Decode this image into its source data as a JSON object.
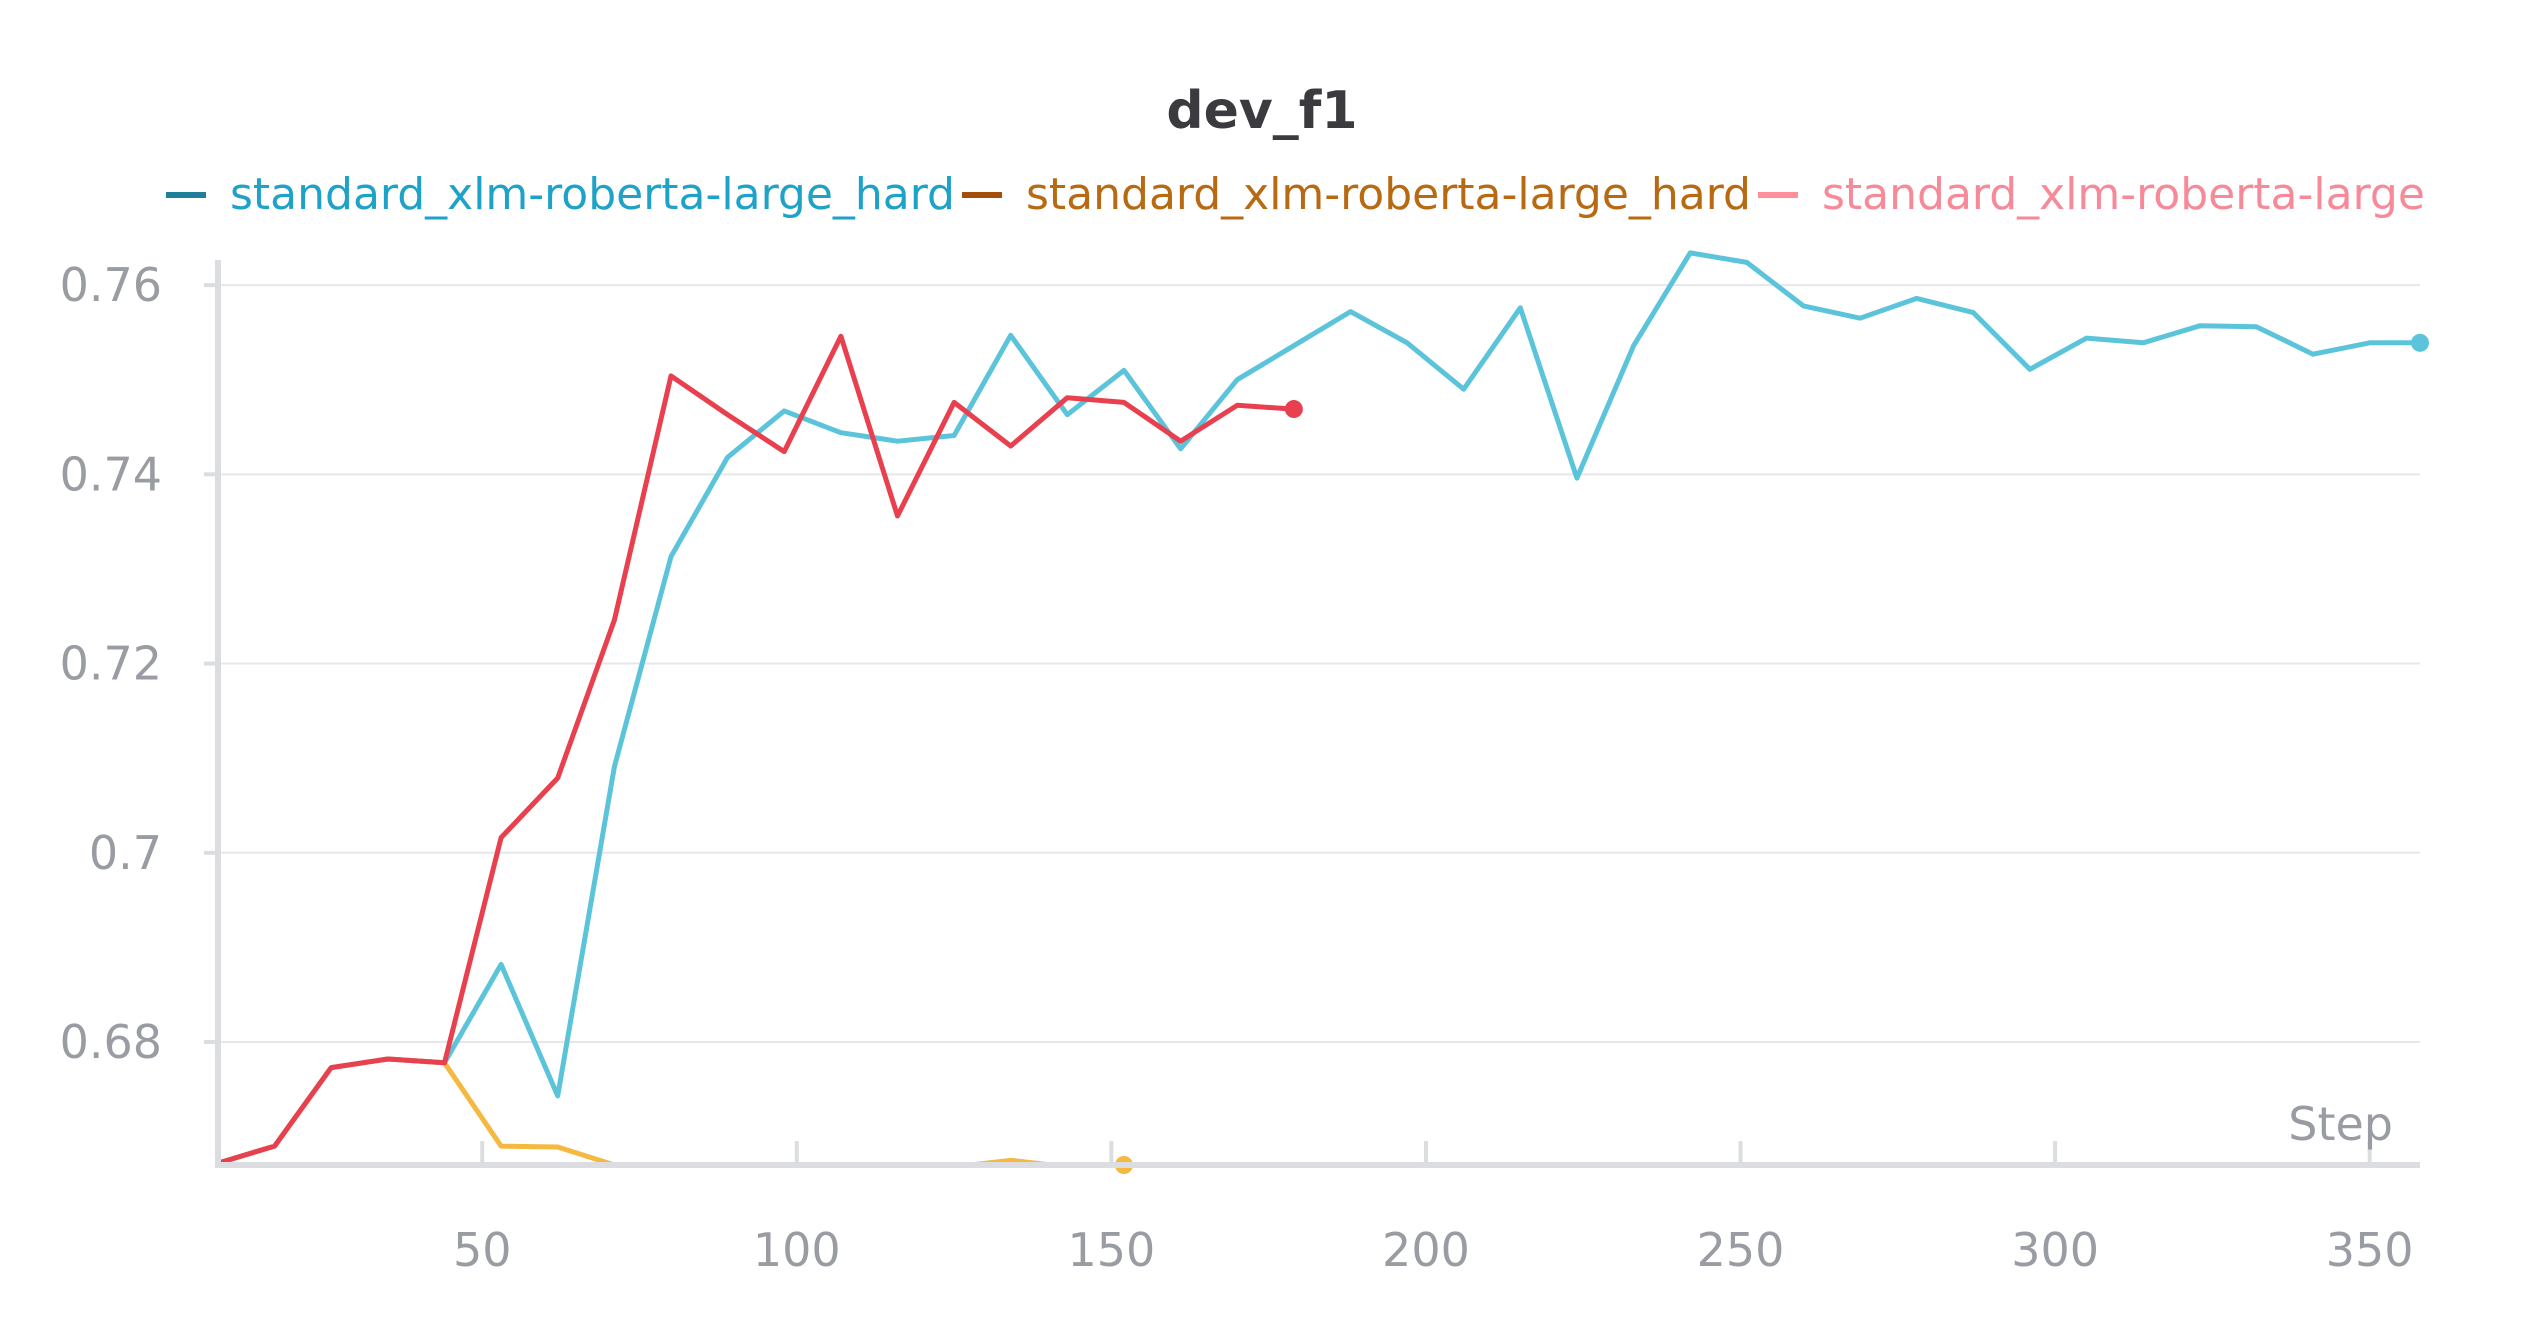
{
  "chart_data": {
    "type": "line",
    "title": "dev_f1",
    "xlabel": "Step",
    "ylabel": "",
    "xlim": [
      8,
      358
    ],
    "ylim": [
      0.667,
      0.7635
    ],
    "x_ticks": [
      50,
      100,
      150,
      200,
      250,
      300,
      350
    ],
    "y_ticks": [
      0.68,
      0.7,
      0.72,
      0.74,
      0.76
    ],
    "y_tick_labels": [
      "0.68",
      "0.7",
      "0.72",
      "0.74",
      "0.76"
    ],
    "grid": true,
    "legend_position": "top",
    "legend": [
      {
        "label": "standard_xlm-roberta-large_hard",
        "swatch_color": "#1f7f99",
        "text_color": "#1ea2c8"
      },
      {
        "label": "standard_xlm-roberta-large_hard",
        "swatch_color": "#a34f0a",
        "text_color": "#b86a12"
      },
      {
        "label": "standard_xlm-roberta-large",
        "swatch_color": "#ff8f9c",
        "text_color": "#f78a99"
      }
    ],
    "series": [
      {
        "color": "#5cc4da",
        "end_marker": true,
        "x": [
          8,
          17,
          26,
          35,
          44,
          53,
          62,
          71,
          80,
          89,
          98,
          107,
          116,
          125,
          134,
          143,
          152,
          161,
          170,
          179,
          188,
          197,
          206,
          215,
          224,
          233,
          242,
          251,
          260,
          269,
          278,
          287,
          296,
          305,
          314,
          323,
          332,
          341,
          350,
          358
        ],
        "values": [
          0.6672,
          0.669,
          0.6773,
          0.6782,
          0.6778,
          0.6882,
          0.6743,
          0.7091,
          0.7313,
          0.7418,
          0.7467,
          0.7444,
          0.7435,
          0.7441,
          0.7547,
          0.7463,
          0.751,
          0.7427,
          0.75,
          0.7536,
          0.7572,
          0.7539,
          0.749,
          0.7576,
          0.7396,
          0.7536,
          0.7634,
          0.7624,
          0.7578,
          0.7565,
          0.7586,
          0.7571,
          0.7511,
          0.7544,
          0.7539,
          0.7557,
          0.7556,
          0.7527,
          0.7539,
          0.7539
        ]
      },
      {
        "color": "#f5b841",
        "end_marker": true,
        "x": [
          8,
          17,
          26,
          35,
          44,
          53,
          62,
          71,
          80,
          89,
          98,
          107,
          116,
          125,
          134,
          143,
          152
        ],
        "values": [
          0.6672,
          0.669,
          0.6773,
          0.6782,
          0.6778,
          0.669,
          0.6689,
          0.667,
          0.666,
          0.6655,
          0.6655,
          0.6655,
          0.6655,
          0.6668,
          0.6675,
          0.6668,
          0.667
        ]
      },
      {
        "color": "#e8404e",
        "end_marker": true,
        "x": [
          8,
          17,
          26,
          35,
          44,
          53,
          62,
          71,
          80,
          89,
          98,
          107,
          116,
          125,
          134,
          143,
          152,
          161,
          170,
          179
        ],
        "values": [
          0.6672,
          0.669,
          0.6773,
          0.6782,
          0.6778,
          0.7016,
          0.7079,
          0.7246,
          0.7504,
          0.7463,
          0.7424,
          0.7546,
          0.7356,
          0.7476,
          0.743,
          0.7481,
          0.7476,
          0.7435,
          0.7473,
          0.7469
        ]
      }
    ]
  }
}
